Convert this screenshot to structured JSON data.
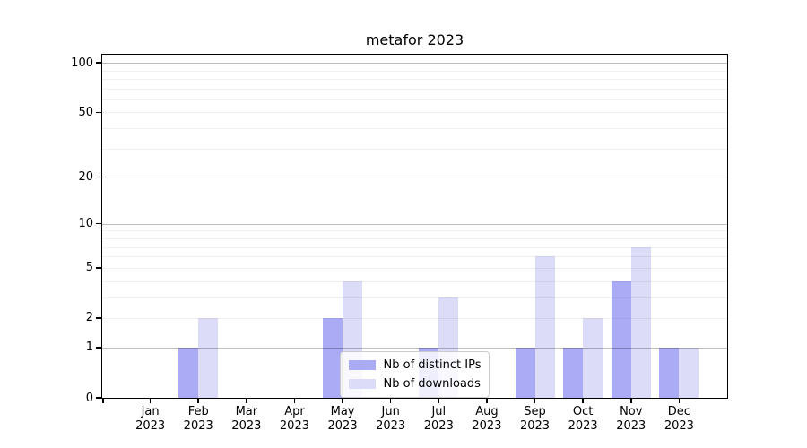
{
  "title": "metafor 2023",
  "legend": {
    "items": [
      {
        "label": "Nb of distinct IPs",
        "color": "#aaaaf5"
      },
      {
        "label": "Nb of downloads",
        "color": "#dcdcf8"
      }
    ]
  },
  "y_axis": {
    "tick_labels": [
      "100",
      "50",
      "20",
      "10",
      "5",
      "2",
      "1",
      "0"
    ],
    "tick_values": [
      100,
      50,
      20,
      10,
      5,
      2,
      1,
      0
    ]
  },
  "x_axis": {
    "year": "2023",
    "months": [
      "Jan",
      "Feb",
      "Mar",
      "Apr",
      "May",
      "Jun",
      "Jul",
      "Aug",
      "Sep",
      "Oct",
      "Nov",
      "Dec"
    ]
  },
  "chart_data": {
    "type": "bar",
    "title": "metafor 2023",
    "categories": [
      "Jan 2023",
      "Feb 2023",
      "Mar 2023",
      "Apr 2023",
      "May 2023",
      "Jun 2023",
      "Jul 2023",
      "Aug 2023",
      "Sep 2023",
      "Oct 2023",
      "Nov 2023",
      "Dec 2023"
    ],
    "series": [
      {
        "name": "Nb of distinct IPs",
        "color": "#aaaaf5",
        "values": [
          0,
          1,
          0,
          0,
          2,
          0,
          1,
          0,
          1,
          1,
          4,
          1
        ]
      },
      {
        "name": "Nb of downloads",
        "color": "#dcdcf8",
        "values": [
          0,
          2,
          0,
          0,
          4,
          0,
          3,
          0,
          6,
          2,
          7,
          1
        ]
      }
    ],
    "xlabel": "",
    "ylabel": "",
    "y_scale": "log1p",
    "ylim": [
      0,
      112
    ],
    "y_ticks": [
      0,
      1,
      2,
      5,
      10,
      20,
      50,
      100
    ],
    "gridlines": {
      "minor": [
        2,
        3,
        4,
        5,
        6,
        7,
        8,
        9,
        20,
        30,
        40,
        50,
        60,
        70,
        80,
        90
      ],
      "major": [
        1,
        10,
        100
      ]
    },
    "grid": true,
    "legend_position": "lower center"
  }
}
